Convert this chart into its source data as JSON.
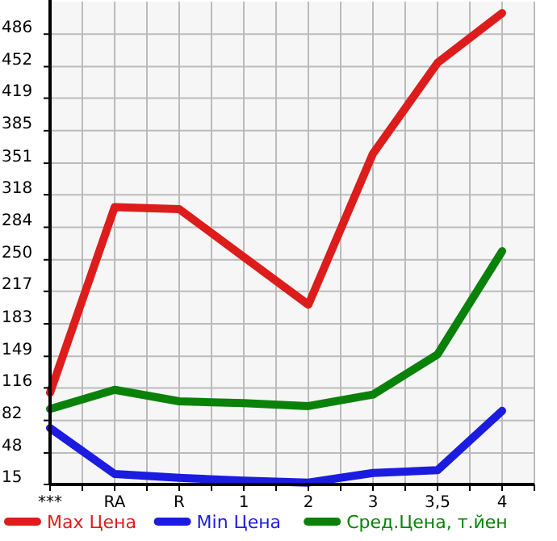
{
  "chart_data": {
    "type": "line",
    "categories": [
      "***",
      "RA",
      "R",
      "1",
      "2",
      "3",
      "3,5",
      "4"
    ],
    "series": [
      {
        "name": "Max Цена",
        "color": "#dd1c1c",
        "values": [
          111,
          305,
          303,
          253,
          203,
          361,
          456,
          508
        ]
      },
      {
        "name": "Min Цена",
        "color": "#1c1ce0",
        "values": [
          74,
          26,
          22,
          19,
          17,
          27,
          30,
          92
        ]
      },
      {
        "name": "Сред.Цена, т.йен",
        "color": "#0a820a",
        "values": [
          94,
          114,
          102,
          100,
          97,
          109,
          151,
          259
        ]
      }
    ],
    "ylim": [
      15,
      520
    ],
    "yticks": [
      15,
      48,
      82,
      116,
      149,
      183,
      217,
      250,
      284,
      318,
      351,
      385,
      419,
      452,
      486
    ],
    "grid": true,
    "legend": "bottom",
    "marker": "none",
    "line_style": "solid"
  }
}
